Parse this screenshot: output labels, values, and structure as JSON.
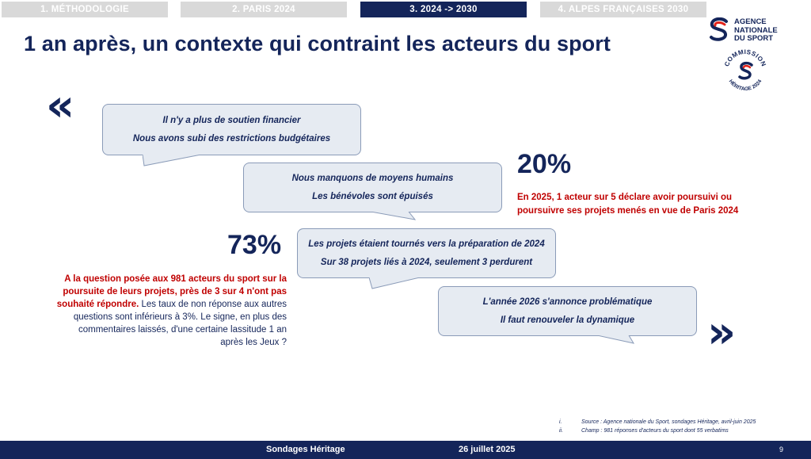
{
  "tabs": [
    {
      "label": "1. MÉTHODOLOGIE",
      "active": false
    },
    {
      "label": "2. PARIS 2024",
      "active": false
    },
    {
      "label": "3. 2024 -> 2030",
      "active": true
    },
    {
      "label": "4. ALPES FRANÇAISES 2030",
      "active": false
    }
  ],
  "title": "1 an après, un contexte qui contraint les acteurs du sport",
  "logo": {
    "line1": "AGENCE",
    "line2": "NATIONALE",
    "line3": "DU SPORT",
    "seal_top": "COMMISSION",
    "seal_bottom": "HÉRITAGE 2024"
  },
  "quote_open": "«",
  "quote_close": "»",
  "bubbles": [
    {
      "line1": "Il n'y a plus de soutien financier",
      "line2": "Nous avons subi des restrictions budgétaires"
    },
    {
      "line1": "Nous manquons de moyens humains",
      "line2": "Les bénévoles sont épuisés"
    },
    {
      "line1": "Les projets étaient tournés vers la préparation de 2024",
      "line2": "Sur 38 projets liés à 2024, seulement 3 perdurent"
    },
    {
      "line1": "L'année 2026 s'annonce problématique",
      "line2": "Il faut renouveler la dynamique"
    }
  ],
  "stat20": {
    "value": "20%",
    "note": "En 2025, 1 acteur sur 5 déclare avoir poursuivi ou poursuivre ses projets menés en vue de Paris 2024"
  },
  "stat73": {
    "value": "73%",
    "highlight": "A la question posée aux 981 acteurs du sport sur la poursuite de leurs projets, près de 3 sur 4 n'ont pas souhaité répondre.",
    "rest": " Les taux de non réponse aux autres questions sont inférieurs à 3%. Le signe, en plus des commentaires laissés, d'une certaine lassitude 1 an après les Jeux ?"
  },
  "sources": [
    {
      "num": "i.",
      "text": "Source : Agence nationale du Sport, sondages Héritage, avril-juin 2025"
    },
    {
      "num": "ii.",
      "text": "Champ : 981 réponses d'acteurs du sport dont 55 verbatims"
    }
  ],
  "footer": {
    "left": "Sondages Héritage",
    "date": "26 juillet 2025",
    "page": "9"
  },
  "colors": {
    "navy": "#14255a",
    "red": "#c00000",
    "bubble": "#e6ebf2",
    "tab_inactive": "#d9d9d9"
  }
}
